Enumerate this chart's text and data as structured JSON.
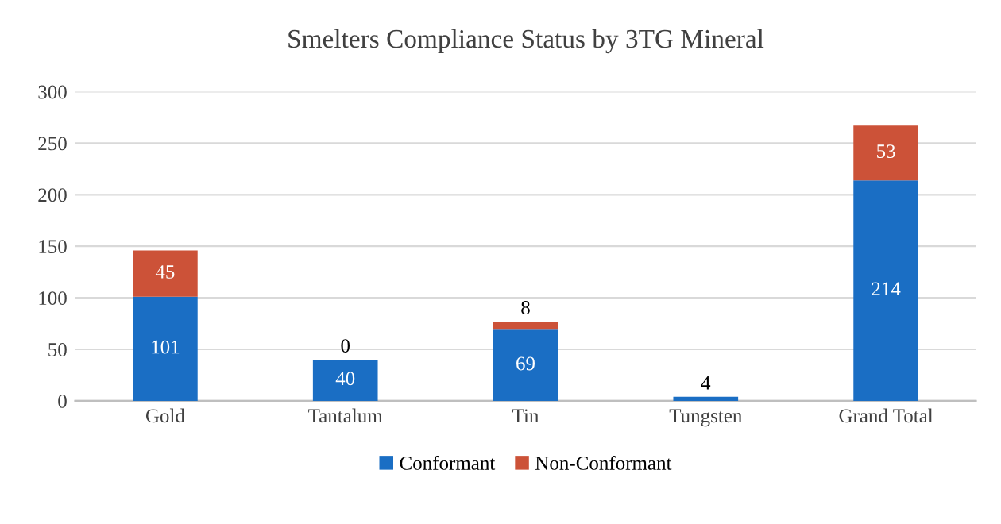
{
  "chart_data": {
    "type": "bar",
    "title": "Smelters Compliance Status by 3TG Mineral",
    "categories": [
      "Gold",
      "Tantalum",
      "Tin",
      "Tungsten",
      "Grand Total"
    ],
    "stacked": true,
    "series": [
      {
        "name": "Conformant",
        "color": "#1a6ec4",
        "values": [
          101,
          40,
          69,
          4,
          214
        ],
        "value_labels": [
          "101",
          "40",
          "69",
          "4",
          "214"
        ]
      },
      {
        "name": "Non-Conformant",
        "color": "#cc5238",
        "values": [
          45,
          0,
          8,
          0,
          53
        ],
        "value_labels": [
          "45",
          "0",
          "8",
          null,
          "53"
        ]
      }
    ],
    "ylim": [
      0,
      300
    ],
    "yticks": [
      0,
      50,
      100,
      150,
      200,
      250,
      300
    ],
    "grid": "y",
    "legend": "bottom"
  }
}
